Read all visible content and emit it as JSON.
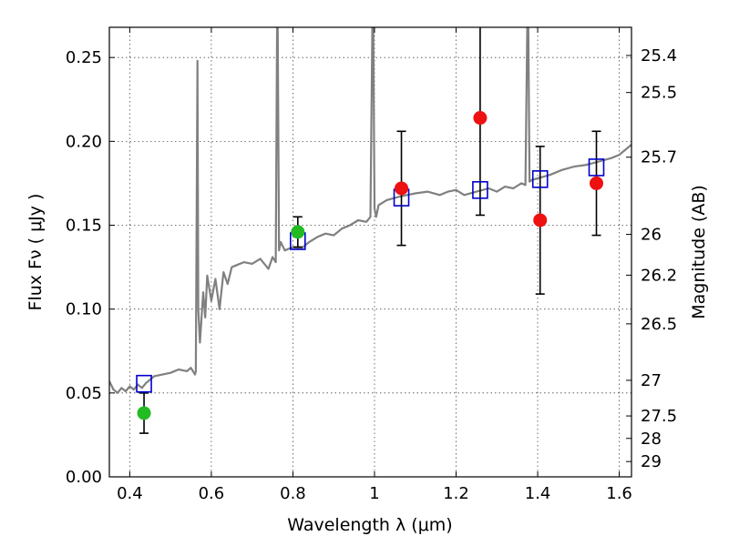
{
  "chart_data": {
    "type": "scatter",
    "xlabel": "Wavelength  λ (μm)",
    "ylabel": "Flux  Fν ( μJy )",
    "y2label": "Magnitude (AB)",
    "xlim": [
      0.35,
      1.63
    ],
    "ylim": [
      0.0,
      0.268
    ],
    "grid": true,
    "x_ticks": [
      0.4,
      0.6,
      0.8,
      1.0,
      1.2,
      1.4,
      1.6
    ],
    "x_tick_labels": [
      "0.4",
      "0.6",
      "0.8",
      "1",
      "1.2",
      "1.4",
      "1.6"
    ],
    "y_ticks": [
      0.0,
      0.05,
      0.1,
      0.15,
      0.2,
      0.25
    ],
    "y_tick_labels": [
      "0.00",
      "0.05",
      "0.10",
      "0.15",
      "0.20",
      "0.25"
    ],
    "y2_ticks": [
      25.4,
      25.5,
      25.7,
      26,
      26.2,
      26.5,
      27,
      27.5,
      28,
      29
    ],
    "y2_tick_labels": [
      "25.4",
      "25.5",
      "25.7",
      "26",
      "26.2",
      "26.5",
      "27",
      "27.5",
      "28",
      "29"
    ],
    "series": [
      {
        "kind": "line",
        "color": "#808080",
        "x": [
          0.35,
          0.36,
          0.37,
          0.38,
          0.39,
          0.4,
          0.41,
          0.42,
          0.43,
          0.44,
          0.45,
          0.46,
          0.48,
          0.5,
          0.52,
          0.54,
          0.55,
          0.56,
          0.562,
          0.566,
          0.568,
          0.572,
          0.58,
          0.585,
          0.59,
          0.6,
          0.61,
          0.62,
          0.63,
          0.64,
          0.65,
          0.66,
          0.68,
          0.7,
          0.72,
          0.74,
          0.75,
          0.758,
          0.762,
          0.766,
          0.77,
          0.78,
          0.8,
          0.82,
          0.84,
          0.86,
          0.88,
          0.9,
          0.92,
          0.94,
          0.96,
          0.98,
          0.99,
          0.996,
          1.0,
          1.004,
          1.01,
          1.03,
          1.06,
          1.08,
          1.1,
          1.13,
          1.16,
          1.18,
          1.2,
          1.22,
          1.25,
          1.28,
          1.3,
          1.32,
          1.34,
          1.36,
          1.37,
          1.376,
          1.38,
          1.386,
          1.4,
          1.43,
          1.46,
          1.49,
          1.52,
          1.55,
          1.58,
          1.6,
          1.63
        ],
        "y": [
          0.057,
          0.052,
          0.05,
          0.053,
          0.051,
          0.054,
          0.052,
          0.055,
          0.053,
          0.056,
          0.058,
          0.06,
          0.061,
          0.062,
          0.064,
          0.063,
          0.065,
          0.061,
          0.063,
          0.248,
          0.1,
          0.08,
          0.11,
          0.095,
          0.12,
          0.105,
          0.118,
          0.1,
          0.122,
          0.115,
          0.125,
          0.126,
          0.128,
          0.127,
          0.13,
          0.124,
          0.131,
          0.128,
          0.3,
          0.135,
          0.14,
          0.135,
          0.137,
          0.136,
          0.14,
          0.143,
          0.145,
          0.144,
          0.148,
          0.15,
          0.153,
          0.152,
          0.155,
          0.3,
          0.16,
          0.155,
          0.162,
          0.165,
          0.167,
          0.168,
          0.169,
          0.17,
          0.168,
          0.17,
          0.171,
          0.168,
          0.17,
          0.172,
          0.17,
          0.173,
          0.172,
          0.175,
          0.174,
          0.3,
          0.176,
          0.177,
          0.178,
          0.18,
          0.183,
          0.185,
          0.186,
          0.188,
          0.19,
          0.192,
          0.198
        ]
      },
      {
        "kind": "model_squares",
        "color": "#0000cc",
        "x": [
          0.435,
          0.812,
          1.066,
          1.259,
          1.406,
          1.544
        ],
        "y": [
          0.0555,
          0.1405,
          0.1665,
          0.171,
          0.1775,
          0.1845
        ]
      },
      {
        "kind": "points",
        "color": "#22bb22",
        "x": [
          0.435,
          0.812
        ],
        "y": [
          0.038,
          0.146
        ],
        "yerr": [
          0.012,
          0.009
        ]
      },
      {
        "kind": "points",
        "color": "#ee1111",
        "x": [
          1.066,
          1.259,
          1.406,
          1.544
        ],
        "y": [
          0.172,
          0.214,
          0.153,
          0.175
        ],
        "yerr": [
          0.034,
          0.058,
          0.044,
          0.031
        ]
      }
    ]
  }
}
